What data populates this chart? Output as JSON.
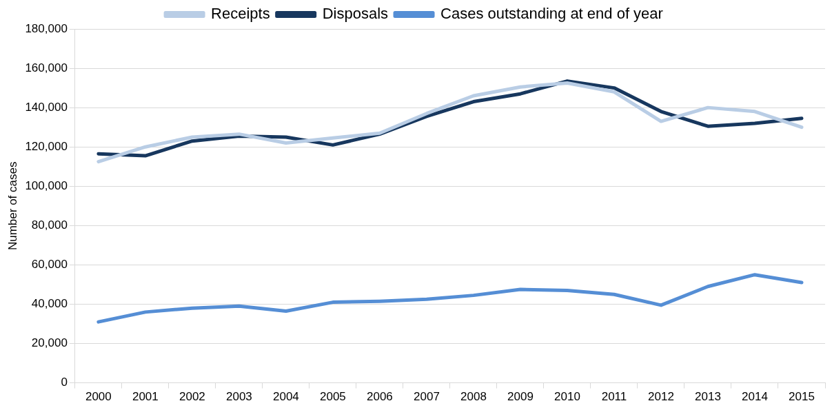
{
  "chart_data": {
    "type": "line",
    "ylabel": "Number of cases",
    "categories": [
      "2000",
      "2001",
      "2002",
      "2003",
      "2004",
      "2005",
      "2006",
      "2007",
      "2008",
      "2009",
      "2010",
      "2011",
      "2012",
      "2013",
      "2014",
      "2015"
    ],
    "series": [
      {
        "name": "Receipts",
        "color": "#b9cde5",
        "values": [
          112500,
          120000,
          125000,
          126500,
          122000,
          124500,
          127000,
          137000,
          146000,
          150500,
          152500,
          148000,
          133000,
          140000,
          138000,
          130000
        ]
      },
      {
        "name": "Disposals",
        "color": "#17375e",
        "values": [
          116500,
          115500,
          123000,
          125500,
          125000,
          121000,
          126500,
          135500,
          143000,
          147000,
          153500,
          150000,
          138000,
          130500,
          132000,
          134500
        ]
      },
      {
        "name": "Cases outstanding at end of year",
        "color": "#558ed5",
        "values": [
          31000,
          36000,
          38000,
          39000,
          36500,
          41000,
          41500,
          42500,
          44500,
          47500,
          47000,
          45000,
          39500,
          49000,
          55000,
          51000
        ]
      }
    ],
    "ylim": [
      0,
      180000
    ],
    "yticks": [
      0,
      {
        "value": 20000,
        "label": "20,000"
      },
      {
        "value": 40000,
        "label": "40,000"
      },
      {
        "value": 60000,
        "label": "60,000"
      },
      {
        "value": 80000,
        "label": "80,000"
      },
      {
        "value": 100000,
        "label": "100,000"
      },
      {
        "value": 120000,
        "label": "120,000"
      },
      {
        "value": 140000,
        "label": "140,000"
      },
      {
        "value": 160000,
        "label": "160,000"
      },
      {
        "value": 180000,
        "label": "180,000"
      }
    ],
    "grid": "y",
    "legend": "top",
    "marker": "none",
    "line_style": "solid"
  }
}
